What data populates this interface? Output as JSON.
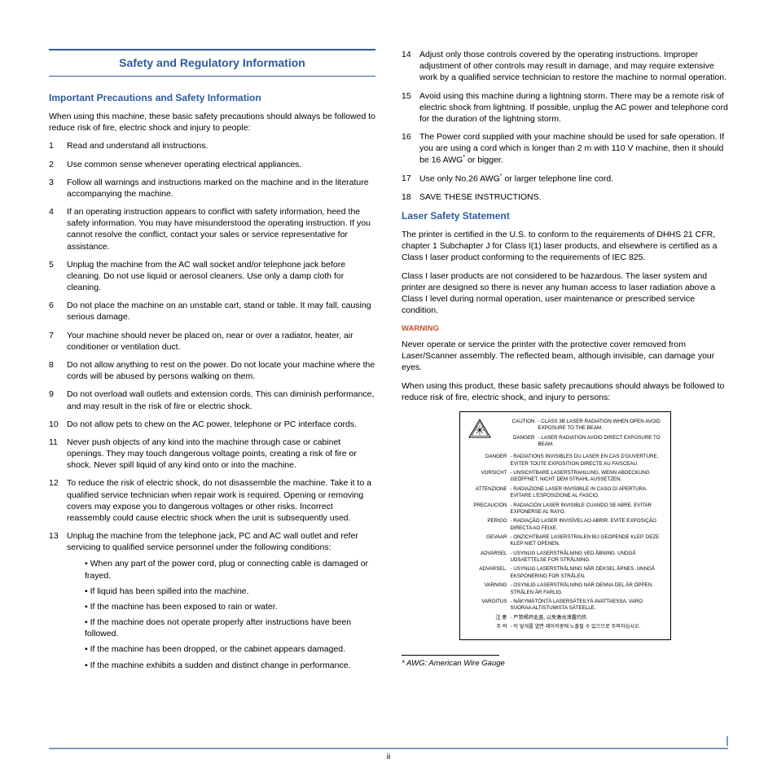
{
  "colors": {
    "heading": "#2e5c9a",
    "warning": "#c05030",
    "rule": "#7a9ac0",
    "text": "#000000",
    "background": "#ffffff"
  },
  "typography": {
    "body_fontsize": 10.5,
    "title_fontsize": 14,
    "subtitle_fontsize": 12,
    "warnbox_fontsize": 6.2,
    "footnote_fontsize": 9.5
  },
  "page_number": "ii",
  "main_title": "Safety and Regulatory Information",
  "sub_title_1": "Important Precautions and Safety Information",
  "intro_1": "When using this machine, these basic safety precautions should always be followed to reduce risk of fire, electric shock and injury to people:",
  "list_a": [
    "Read and understand all instructions.",
    "Use common sense whenever operating electrical appliances.",
    "Follow all warnings and instructions marked on the machine and in the literature accompanying the machine.",
    "If an operating instruction appears to conflict with safety information, heed the safety information. You may have misunderstood the operating instruction. If you cannot resolve the conflict, contact your sales or service representative for assistance.",
    "Unplug the machine from the AC wall socket and/or telephone jack before cleaning. Do not use liquid or aerosol cleaners. Use only a damp cloth for cleaning.",
    "Do not place the machine on an unstable cart, stand or table. It may fall, causing serious damage.",
    "Your machine should never be placed on, near or over a radiator, heater, air conditioner or ventilation duct.",
    "Do not allow anything to rest on the power. Do not locate your machine where the cords will be abused by persons walking on them.",
    "Do not overload wall outlets and extension cords. This can diminish performance, and may result in the risk of fire or electric shock.",
    "Do not allow pets to chew on the AC power, telephone or PC interface cords.",
    "Never push objects of any kind into the machine through case or cabinet openings. They may touch dangerous voltage points, creating a risk of fire or shock. Never spill liquid of any kind onto or into the machine.",
    "To reduce the risk of electric shock, do not disassemble the machine. Take it to a qualified service technician when repair work is required. Opening or removing covers may expose you to dangerous voltages or other risks. Incorrect reassembly could cause electric shock when the unit is subsequently used."
  ],
  "item13_lead": "Unplug the machine from the telephone jack, PC and AC wall outlet and refer servicing to qualified service personnel under the following conditions:",
  "item13_bullets": [
    "When any part of the power cord, plug or connecting cable is damaged or frayed.",
    "If liquid has been spilled into the machine.",
    "If the machine has been exposed to rain or water.",
    "If the machine does not operate properly after instructions have been followed.",
    "If the machine has been dropped, or the cabinet appears damaged.",
    "If the machine exhibits a sudden and distinct change in performance."
  ],
  "list_b": [
    {
      "n": "14",
      "t": "Adjust only those controls covered by the operating instructions. Improper adjustment of other controls may result in damage, and may require extensive work by a qualified service technician to restore the machine to normal operation."
    },
    {
      "n": "15",
      "t": "Avoid using this machine during a lightning storm. There may be a remote risk of electric shock from lightning. If possible, unplug the AC power and telephone cord for the duration of the lightning storm."
    },
    {
      "n": "16",
      "t": "The Power cord supplied with your machine should be used for safe operation. If you are using a cord which is longer than 2 m with 110 V machine, then it should be 16 AWG* or bigger."
    },
    {
      "n": "17",
      "t": "Use only No.26 AWG* or larger telephone line cord."
    },
    {
      "n": "18",
      "t": "SAVE THESE INSTRUCTIONS."
    }
  ],
  "sub_title_2": "Laser Safety Statement",
  "laser_p1": "The printer is certified in the U.S. to conform to the requirements of DHHS 21 CFR, chapter 1 Subchapter J for Class I(1) laser products, and elsewhere is certified as a Class I laser product conforming to the requirements of IEC 825.",
  "laser_p2": "Class I laser products are not considered to be hazardous. The laser system and printer are designed so there is never any human access to laser radiation above a Class I level during normal operation, user maintenance or prescribed service condition.",
  "warning_head": "WARNING",
  "warning_p1": "Never operate or service the printer with the protective cover removed from Laser/Scanner assembly. The reflected beam, although invisible, can damage your eyes.",
  "warning_p2": "When using this product, these basic safety precautions should always be followed to reduce risk of fire, electric shock, and injury to persons:",
  "warn_box": [
    {
      "l": "CAUTION",
      "t": "- CLASS 3B LASER RADIATION WHEN OPEN AVOID EXPOSURE TO THE BEAM."
    },
    {
      "l": "DANGER",
      "t": "- LASER RADIATION AVOID DIRECT EXPOSURE TO BEAM."
    },
    {
      "l": "DANGER",
      "t": "- RADIATIONS INVISIBLES DU LASER EN CAS D'OUVERTURE. EVITER TOUTE EXPOSITION DIRECTE AU FAISCEAU."
    },
    {
      "l": "VORSICHT",
      "t": "- UNSICHTBARE LASERSTRAHLUNG, WENN ABDECKUNG GEÖFFNET. NICHT DEM STRAHL AUSSETZEN."
    },
    {
      "l": "ATTENZIONE",
      "t": "- RADIAZIONE LASER INVISIBILE IN CASO DI APERTURA. EVITARE L'ESPOSIZIONE AL FASCIO."
    },
    {
      "l": "PRECAUCIÓN",
      "t": "- RADIACIÓN LASER INVISIBLE CUANDO SE ABRE. EVITAR EXPONERSE AL RAYO."
    },
    {
      "l": "PERIGO",
      "t": "- RADIAÇÃO LASER INVISÍVEL AO ABRIR. EVITE EXPOSIÇÃO DIRECTA AO FEIXE."
    },
    {
      "l": "GEVAAR",
      "t": "- ONZICHTBARE LASERSTRALEN BIJ GEOPENDE KLEP. DEZE KLEP NIET OPENEN."
    },
    {
      "l": "ADVARSEL",
      "t": "- USYNLIG LASERSTRÅLNING VED ÅBNING. UNDGÅ UDSAETTELSE FOR STRÅLNING."
    },
    {
      "l": "ADVARSEL.",
      "t": "- USYNLIG LASERSTRÅLNING NÅR DEKSEL ÅPNES. UNNGÅ EKSPONERING FOR STRÅLEN."
    },
    {
      "l": "VARNING",
      "t": "- OSYNLIG LASERSTRÅLNING NÄR DENNA DEL ÄR ÖPPEN. STRÅLEN ÄR FARLIG."
    },
    {
      "l": "VAROITUS",
      "t": "- NÄKYMÄTÖNTÄ LASERSÄTEILYÄ AVATTAESSA. VARO SUORAA ALTISTUMISTA SÄTEELLE."
    },
    {
      "l": "注    意",
      "t": "- 严禁揭开此盖, 以免激光泄露灼伤"
    },
    {
      "l": "주    의",
      "t": "- 이 덮개를 열면 레이저광에 노출될 수 있으므로 주의하십시오."
    }
  ],
  "footnote": "*  AWG: American Wire Gauge"
}
